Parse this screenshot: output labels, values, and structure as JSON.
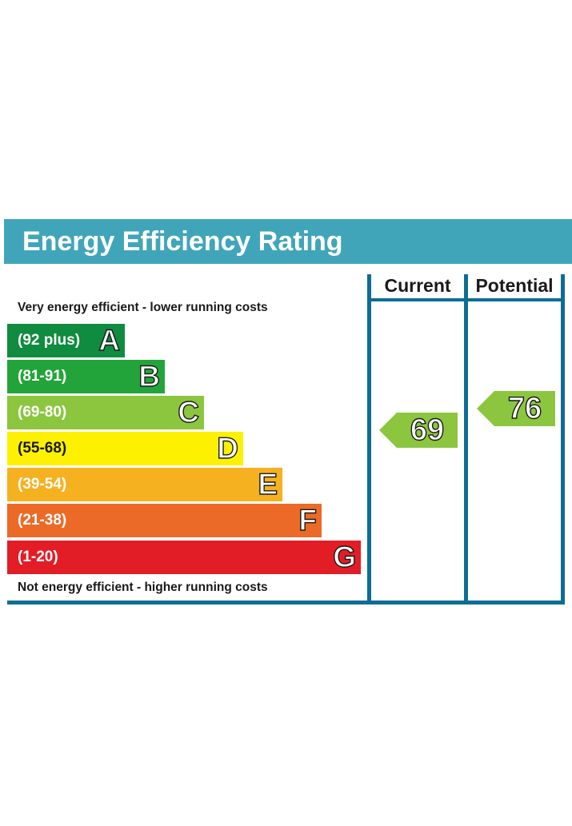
{
  "header": {
    "title": "Energy Efficiency Rating"
  },
  "columns": {
    "current_label": "Current",
    "potential_label": "Potential"
  },
  "captions": {
    "top": "Very energy efficient - lower running costs",
    "bottom": "Not energy efficient - higher running costs"
  },
  "bands": [
    {
      "letter": "A",
      "range": "(92 plus)",
      "color": "#0f8c3f"
    },
    {
      "letter": "B",
      "range": "(81-91)",
      "color": "#23a43a"
    },
    {
      "letter": "C",
      "range": "(69-80)",
      "color": "#8cc63f"
    },
    {
      "letter": "D",
      "range": "(55-68)",
      "color": "#fdf100"
    },
    {
      "letter": "E",
      "range": "(39-54)",
      "color": "#f5b120"
    },
    {
      "letter": "F",
      "range": "(21-38)",
      "color": "#ec6a27"
    },
    {
      "letter": "G",
      "range": "(1-20)",
      "color": "#e21d26"
    }
  ],
  "ratings": {
    "current": {
      "value": "69",
      "band": "C",
      "color": "#8cc63f"
    },
    "potential": {
      "value": "76",
      "band": "C",
      "color": "#8cc63f"
    }
  },
  "colors": {
    "header": "#41a5ba",
    "frame": "#0d6d95"
  }
}
